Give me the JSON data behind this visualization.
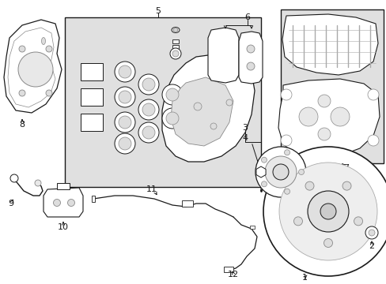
{
  "bg_color": "#ffffff",
  "line_color": "#1a1a1a",
  "gray_bg": "#e0e0e0",
  "fig_width": 4.89,
  "fig_height": 3.6,
  "dpi": 100
}
